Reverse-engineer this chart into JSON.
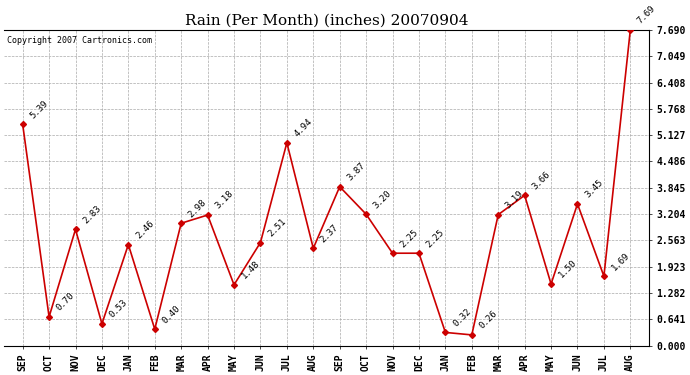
{
  "title": "Rain (Per Month) (inches) 20070904",
  "copyright_text": "Copyright 2007 Cartronics.com",
  "months": [
    "SEP",
    "OCT",
    "NOV",
    "DEC",
    "JAN",
    "FEB",
    "MAR",
    "APR",
    "MAY",
    "JUN",
    "JUL",
    "AUG",
    "SEP",
    "OCT",
    "NOV",
    "DEC",
    "JAN",
    "FEB",
    "MAR",
    "APR",
    "MAY",
    "JUN",
    "JUL",
    "AUG"
  ],
  "values": [
    5.39,
    0.7,
    2.83,
    0.53,
    2.46,
    0.4,
    2.98,
    3.18,
    1.48,
    2.51,
    4.94,
    2.37,
    3.87,
    3.2,
    2.25,
    2.25,
    0.32,
    0.26,
    3.19,
    3.66,
    1.5,
    3.45,
    1.69,
    7.69
  ],
  "line_color": "#cc0000",
  "marker": "D",
  "marker_size": 3,
  "background_color": "#ffffff",
  "grid_color": "#aaaaaa",
  "ylim": [
    0.0,
    7.69
  ],
  "ytick_values": [
    0.0,
    0.641,
    1.282,
    1.923,
    2.563,
    3.204,
    3.845,
    4.486,
    5.127,
    5.768,
    6.408,
    7.049,
    7.69
  ],
  "ytick_labels": [
    "0.000",
    "0.641",
    "1.282",
    "1.923",
    "2.563",
    "3.204",
    "3.845",
    "4.486",
    "5.127",
    "5.768",
    "6.408",
    "7.049",
    "7.690"
  ],
  "title_fontsize": 11,
  "tick_fontsize": 7,
  "annotation_fontsize": 6.5,
  "copyright_fontsize": 6
}
